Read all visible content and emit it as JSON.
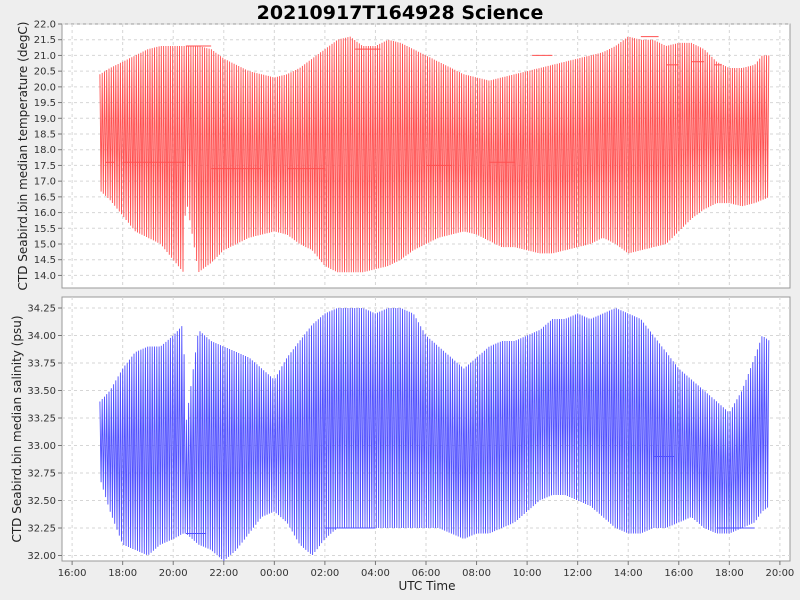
{
  "chart_data": {
    "title": "20210917T164928 Science",
    "xlabel": "UTC Time",
    "x_ticks": [
      "16:00",
      "18:00",
      "20:00",
      "22:00",
      "00:00",
      "02:00",
      "04:00",
      "06:00",
      "08:00",
      "10:00",
      "12:00",
      "14:00",
      "16:00",
      "18:00",
      "20:00"
    ],
    "x_start_hour": 16,
    "x_range_hours": [
      15.6,
      44.4
    ],
    "grid": true,
    "panels": [
      {
        "type": "line",
        "ylabel": "CTD Seabird.bin median temperature (degC)",
        "ylim": [
          13.6,
          22.0
        ],
        "y_ticks": [
          "14.0",
          "14.5",
          "15.0",
          "15.5",
          "16.0",
          "16.5",
          "17.0",
          "17.5",
          "18.0",
          "18.5",
          "19.0",
          "19.5",
          "20.0",
          "20.5",
          "21.0",
          "21.5",
          "22.0"
        ],
        "color": "#ff5050",
        "series": [
          {
            "x_hours": [
              17.1,
              17.5,
              18.0,
              18.5,
              19.0,
              19.5,
              20.0,
              20.4,
              20.5,
              21.0,
              21.5,
              22.0,
              22.5,
              23.0,
              23.5,
              24.0,
              24.5,
              25.0,
              25.5,
              26.0,
              26.5,
              27.0,
              27.5,
              28.0,
              28.5,
              29.0,
              29.5,
              30.0,
              30.5,
              31.0,
              31.5,
              32.0,
              32.5,
              33.0,
              33.5,
              34.0,
              34.5,
              35.0,
              35.5,
              36.0,
              36.5,
              37.0,
              37.5,
              38.0,
              38.5,
              39.0,
              39.5,
              40.0,
              40.5,
              41.0,
              41.5,
              42.0,
              42.5,
              43.0,
              43.3,
              43.6
            ],
            "upper": [
              20.4,
              20.6,
              20.8,
              21.0,
              21.2,
              21.3,
              21.3,
              21.3,
              21.3,
              21.3,
              21.2,
              20.9,
              20.7,
              20.5,
              20.4,
              20.3,
              20.4,
              20.6,
              20.9,
              21.2,
              21.5,
              21.6,
              21.3,
              21.3,
              21.5,
              21.4,
              21.2,
              21.0,
              20.8,
              20.6,
              20.4,
              20.3,
              20.2,
              20.3,
              20.4,
              20.5,
              20.6,
              20.7,
              20.8,
              20.9,
              21.0,
              21.1,
              21.3,
              21.6,
              21.5,
              21.5,
              21.3,
              21.4,
              21.4,
              21.2,
              20.8,
              20.6,
              20.6,
              20.7,
              21.0,
              21.0
            ],
            "lower": [
              16.7,
              16.4,
              15.9,
              15.4,
              15.2,
              15.0,
              14.5,
              14.1,
              16.5,
              14.1,
              14.4,
              14.8,
              15.0,
              15.2,
              15.3,
              15.4,
              15.3,
              15.0,
              14.8,
              14.3,
              14.1,
              14.1,
              14.1,
              14.2,
              14.3,
              14.5,
              14.8,
              15.0,
              15.2,
              15.3,
              15.4,
              15.3,
              15.1,
              14.9,
              14.9,
              14.8,
              14.7,
              14.7,
              14.8,
              14.9,
              15.0,
              15.2,
              15.0,
              14.7,
              14.8,
              14.9,
              15.0,
              15.4,
              15.8,
              16.1,
              16.3,
              16.3,
              16.2,
              16.3,
              16.4,
              16.5
            ],
            "flat_segments": [
              {
                "x": [
                  17.3,
                  17.7
                ],
                "y": 17.6
              },
              {
                "x": [
                  18.0,
                  20.5
                ],
                "y": 17.6
              },
              {
                "x": [
                  20.5,
                  21.5
                ],
                "y": 21.3
              },
              {
                "x": [
                  21.5,
                  23.5
                ],
                "y": 17.4
              },
              {
                "x": [
                  24.5,
                  26.0
                ],
                "y": 17.4
              },
              {
                "x": [
                  27.2,
                  28.2
                ],
                "y": 21.2
              },
              {
                "x": [
                  30.0,
                  31.0
                ],
                "y": 17.5
              },
              {
                "x": [
                  32.5,
                  33.5
                ],
                "y": 17.6
              },
              {
                "x": [
                  34.2,
                  35.0
                ],
                "y": 21.0
              },
              {
                "x": [
                  38.5,
                  39.2
                ],
                "y": 21.6
              },
              {
                "x": [
                  39.5,
                  40.0
                ],
                "y": 20.7
              },
              {
                "x": [
                  40.5,
                  41.0
                ],
                "y": 20.8
              },
              {
                "x": [
                  41.4,
                  41.7
                ],
                "y": 20.7
              }
            ]
          }
        ]
      },
      {
        "type": "line",
        "ylabel": "CTD Seabird.bin median salinity (psu)",
        "ylim": [
          31.95,
          34.35
        ],
        "y_ticks": [
          "32.00",
          "32.25",
          "32.50",
          "32.75",
          "33.00",
          "33.25",
          "33.50",
          "33.75",
          "34.00",
          "34.25"
        ],
        "color": "#5050ff",
        "series": [
          {
            "x_hours": [
              17.1,
              17.5,
              18.0,
              18.5,
              19.0,
              19.5,
              20.0,
              20.4,
              20.5,
              21.0,
              21.5,
              22.0,
              22.5,
              23.0,
              23.5,
              24.0,
              24.5,
              25.0,
              25.5,
              26.0,
              26.5,
              27.0,
              27.5,
              28.0,
              28.5,
              29.0,
              29.5,
              30.0,
              30.5,
              31.0,
              31.5,
              32.0,
              32.5,
              33.0,
              33.5,
              34.0,
              34.5,
              35.0,
              35.5,
              36.0,
              36.5,
              37.0,
              37.5,
              38.0,
              38.5,
              39.0,
              39.5,
              40.0,
              40.5,
              41.0,
              41.5,
              42.0,
              42.5,
              43.0,
              43.3,
              43.6
            ],
            "upper": [
              33.4,
              33.5,
              33.7,
              33.85,
              33.9,
              33.9,
              34.0,
              34.1,
              33.2,
              34.05,
              33.95,
              33.9,
              33.85,
              33.8,
              33.7,
              33.6,
              33.8,
              33.95,
              34.1,
              34.2,
              34.25,
              34.25,
              34.25,
              34.2,
              34.25,
              34.25,
              34.2,
              34.0,
              33.9,
              33.8,
              33.7,
              33.8,
              33.9,
              33.95,
              33.95,
              34.0,
              34.05,
              34.15,
              34.15,
              34.2,
              34.15,
              34.2,
              34.25,
              34.2,
              34.15,
              34.0,
              33.85,
              33.7,
              33.6,
              33.5,
              33.4,
              33.3,
              33.5,
              33.8,
              34.0,
              33.95
            ],
            "lower": [
              32.7,
              32.4,
              32.1,
              32.05,
              32.0,
              32.1,
              32.15,
              32.2,
              32.2,
              32.1,
              32.05,
              31.95,
              32.05,
              32.2,
              32.35,
              32.4,
              32.3,
              32.1,
              32.0,
              32.15,
              32.25,
              32.25,
              32.25,
              32.25,
              32.25,
              32.25,
              32.25,
              32.25,
              32.25,
              32.2,
              32.15,
              32.2,
              32.2,
              32.25,
              32.3,
              32.4,
              32.5,
              32.55,
              32.55,
              32.5,
              32.45,
              32.35,
              32.25,
              32.2,
              32.2,
              32.25,
              32.25,
              32.3,
              32.35,
              32.25,
              32.2,
              32.2,
              32.25,
              32.3,
              32.4,
              32.45
            ],
            "flat_segments": [
              {
                "x": [
                  20.5,
                  21.3
                ],
                "y": 32.2
              },
              {
                "x": [
                  26.0,
                  28.0
                ],
                "y": 32.25
              },
              {
                "x": [
                  39.0,
                  39.8
                ],
                "y": 32.9
              },
              {
                "x": [
                  41.5,
                  43.0
                ],
                "y": 32.25
              }
            ]
          }
        ]
      }
    ]
  }
}
